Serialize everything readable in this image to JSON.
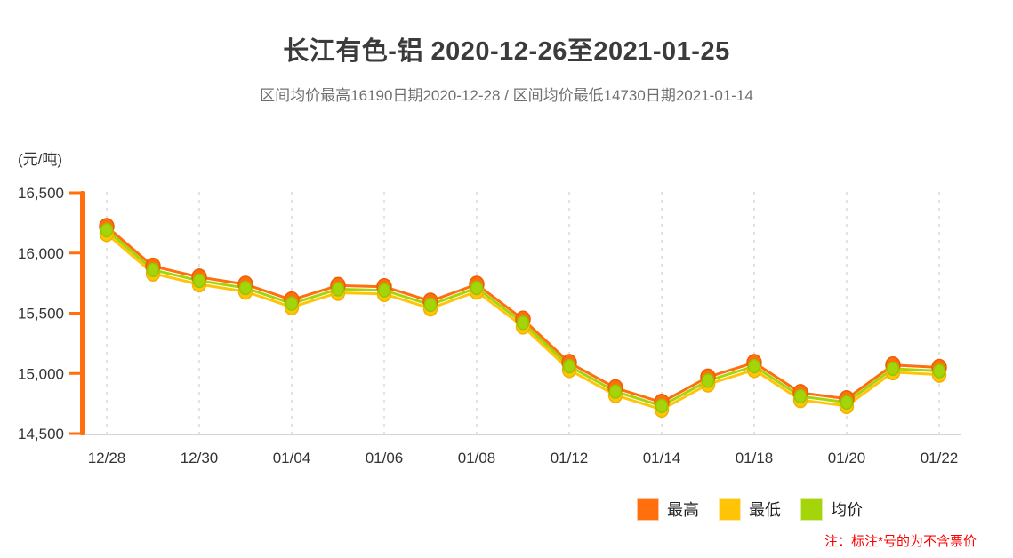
{
  "footnote": "注：标注*号的为不含票价",
  "chart_data": {
    "type": "line",
    "title": "长江有色-铝 2020-12-26至2021-01-25",
    "subtitle": "区间均价最高16190日期2020-12-28 / 区间均价最低14730日期2021-01-14",
    "unit_label": "(元/吨)",
    "xlabel": "",
    "ylabel": "元/吨",
    "ylim": [
      14500,
      16500
    ],
    "y_ticks": [
      16500,
      16000,
      15500,
      15000,
      14500
    ],
    "y_tick_labels": [
      "16,500",
      "16,000",
      "15,500",
      "15,000",
      "14,500"
    ],
    "x": [
      "12/28",
      "12/29",
      "12/30",
      "12/31",
      "01/04",
      "01/05",
      "01/06",
      "01/07",
      "01/08",
      "01/11",
      "01/12",
      "01/13",
      "01/14",
      "01/15",
      "01/18",
      "01/19",
      "01/20",
      "01/21",
      "01/22"
    ],
    "x_tick_labels": [
      "12/28",
      "12/30",
      "01/04",
      "01/06",
      "01/08",
      "01/12",
      "01/14",
      "01/18",
      "01/20",
      "01/22"
    ],
    "x_tick_every": 2,
    "grid": "vertical-dashed",
    "legend_position": "bottom",
    "axis_color": "#ff6f0e",
    "grid_color": "#dcdcdc",
    "series": [
      {
        "name": "最高",
        "color": "#ff6f0e",
        "values": [
          16220,
          15890,
          15800,
          15740,
          15610,
          15730,
          15720,
          15600,
          15740,
          15450,
          15090,
          14880,
          14760,
          14970,
          15090,
          14840,
          14790,
          15070,
          15050
        ]
      },
      {
        "name": "最低",
        "color": "#ffc408",
        "values": [
          16160,
          15830,
          15740,
          15680,
          15550,
          15670,
          15660,
          15540,
          15680,
          15390,
          15030,
          14820,
          14700,
          14910,
          15030,
          14780,
          14730,
          15010,
          14990
        ]
      },
      {
        "name": "均价",
        "color": "#a4d40a",
        "values": [
          16190,
          15860,
          15770,
          15710,
          15580,
          15700,
          15690,
          15570,
          15710,
          15420,
          15060,
          14850,
          14730,
          14940,
          15060,
          14810,
          14760,
          15040,
          15020
        ]
      }
    ],
    "annotations": {
      "max_avg": {
        "value": 16190,
        "date": "2020-12-28"
      },
      "min_avg": {
        "value": 14730,
        "date": "2021-01-14"
      }
    }
  }
}
